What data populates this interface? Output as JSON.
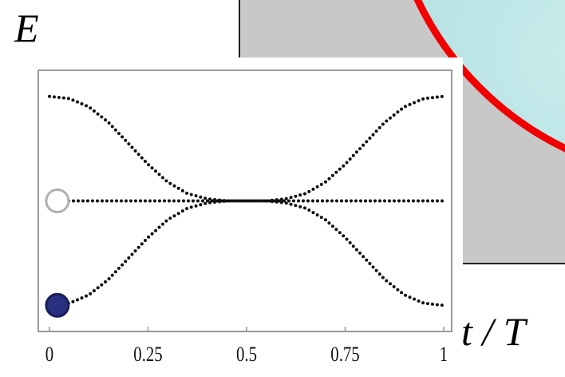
{
  "chart_data": {
    "type": "line",
    "x_label": "t / T",
    "y_label": "E",
    "x": [
      0,
      0.05,
      0.1,
      0.15,
      0.2,
      0.25,
      0.3,
      0.35,
      0.4,
      0.45,
      0.5,
      0.55,
      0.6,
      0.65,
      0.7,
      0.75,
      0.8,
      0.85,
      0.9,
      0.95,
      1
    ],
    "series": [
      {
        "color": "#111111",
        "values": [
          1,
          0.98,
          0.9,
          0.75,
          0.55,
          0.35,
          0.18,
          0.07,
          0.02,
          0,
          0,
          0,
          0.02,
          0.07,
          0.18,
          0.35,
          0.55,
          0.75,
          0.9,
          0.98,
          1
        ]
      },
      {
        "color": "#111111",
        "values": [
          0,
          0,
          0,
          0,
          0,
          0,
          0,
          0,
          0,
          0,
          0,
          0,
          0,
          0,
          0,
          0,
          0,
          0,
          0,
          0,
          0
        ]
      },
      {
        "color": "#111111",
        "values": [
          -1,
          -0.98,
          -0.9,
          -0.75,
          -0.55,
          -0.35,
          -0.18,
          -0.07,
          -0.02,
          0,
          0,
          0,
          -0.02,
          -0.07,
          -0.18,
          -0.35,
          -0.55,
          -0.75,
          -0.9,
          -0.98,
          -1
        ]
      }
    ],
    "points": [
      {
        "x": 0.02,
        "y": 0,
        "color": "#ffffff",
        "stroke": "#b0b0b0"
      },
      {
        "x": 0.02,
        "y": -1,
        "color": "#28307f",
        "stroke": "#1a1f5a"
      }
    ],
    "xlim": [
      0,
      1
    ],
    "ylim": [
      -1.25,
      1.25
    ],
    "xticks": [
      0,
      0.25,
      0.5,
      0.75,
      1
    ]
  }
}
